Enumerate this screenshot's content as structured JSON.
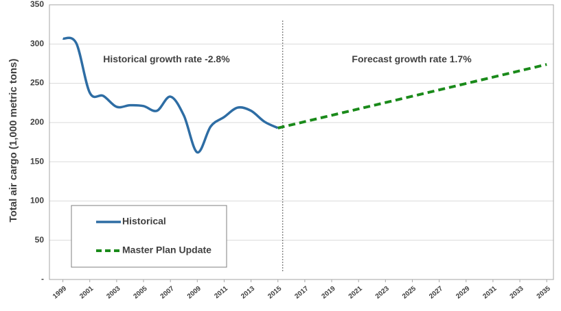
{
  "chart_data": {
    "type": "line",
    "ylabel": "Total air cargo (1,000 metric tons)",
    "annotations": [
      {
        "text": "Historical growth rate -2.8%",
        "x": 2002,
        "y": 280
      },
      {
        "text": "Forecast growth rate 1.7%",
        "x": 2020.5,
        "y": 280
      }
    ],
    "vline": 2015,
    "series": [
      {
        "name": "Historical",
        "color": "#2e6da4",
        "dash": false,
        "x": [
          1999,
          2000,
          2001,
          2002,
          2003,
          2004,
          2005,
          2006,
          2007,
          2008,
          2009,
          2010,
          2011,
          2012,
          2013,
          2014,
          2015
        ],
        "values": [
          307,
          301,
          238,
          234,
          220,
          222,
          221,
          215,
          233,
          209,
          162,
          195,
          207,
          219,
          215,
          201,
          193
        ]
      },
      {
        "name": "Master Plan Update",
        "color": "#1a8a1a",
        "dash": true,
        "x": [
          2015,
          2035
        ],
        "values": [
          193,
          274
        ]
      }
    ],
    "xlim": [
      1998,
      2035.5
    ],
    "xticks": [
      1999,
      2001,
      2003,
      2005,
      2007,
      2009,
      2011,
      2013,
      2015,
      2017,
      2019,
      2021,
      2023,
      2025,
      2027,
      2029,
      2031,
      2033,
      2035
    ],
    "ylim": [
      0,
      350
    ],
    "yticks": [
      {
        "value": 0,
        "label": "-"
      },
      50,
      100,
      150,
      200,
      250,
      300,
      350
    ],
    "grid": true,
    "legend": "lower left"
  }
}
